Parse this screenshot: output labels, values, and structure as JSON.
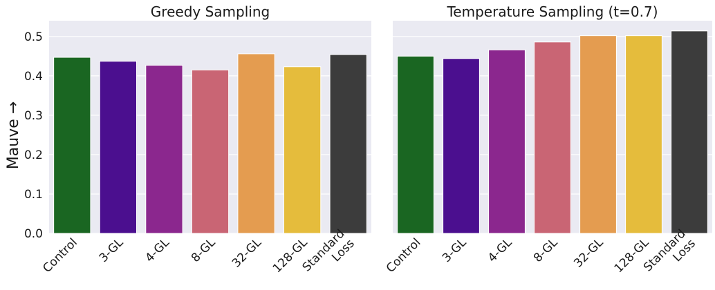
{
  "chart_data": [
    {
      "type": "bar",
      "title": "Greedy Sampling",
      "ylabel": "Mauve →",
      "xlabel": "",
      "ylim": [
        0,
        0.54
      ],
      "yticks": [
        "0.0",
        "0.1",
        "0.2",
        "0.3",
        "0.4",
        "0.5"
      ],
      "grid": true,
      "categories": [
        "Control",
        "3-GL",
        "4-GL",
        "8-GL",
        "32-GL",
        "128-GL",
        "Standard\nLoss"
      ],
      "values": [
        0.447,
        0.437,
        0.427,
        0.415,
        0.456,
        0.423,
        0.454
      ],
      "colors": [
        "#1a6622",
        "#4b0f8f",
        "#8b278e",
        "#c96574",
        "#e49c50",
        "#e5bc3c",
        "#3c3c3c"
      ]
    },
    {
      "type": "bar",
      "title": "Temperature Sampling (t=0.7)",
      "ylabel": "",
      "xlabel": "",
      "ylim": [
        0,
        0.54
      ],
      "yticks": [],
      "grid": true,
      "categories": [
        "Control",
        "3-GL",
        "4-GL",
        "8-GL",
        "32-GL",
        "128-GL",
        "Standard\nLoss"
      ],
      "values": [
        0.45,
        0.444,
        0.466,
        0.486,
        0.502,
        0.502,
        0.514
      ],
      "colors": [
        "#1a6622",
        "#4b0f8f",
        "#8b278e",
        "#c96574",
        "#e49c50",
        "#e5bc3c",
        "#3c3c3c"
      ]
    }
  ]
}
